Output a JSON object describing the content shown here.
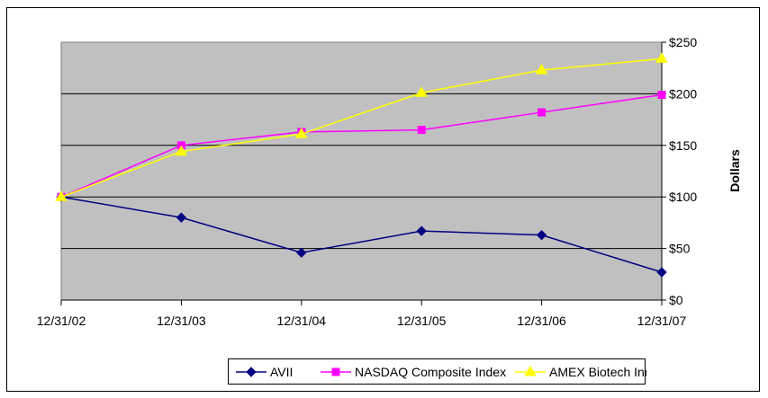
{
  "chart_data": {
    "type": "line",
    "categories": [
      "12/31/02",
      "12/31/03",
      "12/31/04",
      "12/31/05",
      "12/31/06",
      "12/31/07"
    ],
    "ylabel": "Dollars",
    "ylim": [
      0,
      250
    ],
    "yticks": [
      0,
      50,
      100,
      150,
      200,
      250
    ],
    "ytick_labels": [
      "$0",
      "$50",
      "$100",
      "$150",
      "$200",
      "$250"
    ],
    "y_axis_side": "right",
    "grid": "horizontal",
    "plot_background": "#c0c0c0",
    "legend_position": "bottom",
    "series": [
      {
        "name": "AVII",
        "color": "#000080",
        "marker": "diamond",
        "values": [
          100,
          80,
          46,
          67,
          63,
          27
        ]
      },
      {
        "name": "NASDAQ Composite Index",
        "color": "#ff00ff",
        "marker": "square",
        "values": [
          100,
          150,
          163,
          165,
          182,
          199
        ]
      },
      {
        "name": "AMEX Biotech Index",
        "color": "#ffff00",
        "marker": "triangle",
        "values": [
          100,
          144,
          161,
          201,
          223,
          234
        ]
      }
    ]
  }
}
